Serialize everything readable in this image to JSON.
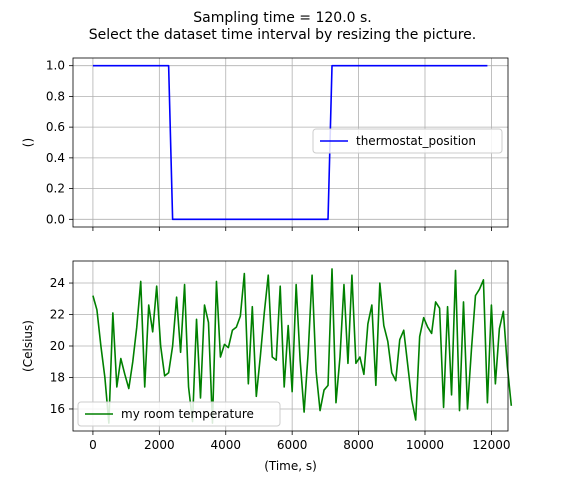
{
  "figure": {
    "title_lines": [
      "Sampling time = 120.0 s.",
      "Select the dataset time interval by resizing the picture."
    ]
  },
  "chart_data": [
    {
      "type": "line",
      "ylabel": "()",
      "xlabel": "",
      "xlim": [
        -600,
        12500
      ],
      "ylim": [
        -0.05,
        1.05
      ],
      "xticks": [
        0,
        2000,
        4000,
        6000,
        8000,
        10000,
        12000
      ],
      "xtick_labels_visible": false,
      "yticks": [
        0.0,
        0.2,
        0.4,
        0.6,
        0.8,
        1.0
      ],
      "ytick_labels": [
        "0.0",
        "0.2",
        "0.4",
        "0.6",
        "0.8",
        "1.0"
      ],
      "grid": true,
      "legend_position": "center-right",
      "series": [
        {
          "name": "thermostat_position",
          "color": "#0000ff",
          "x": [
            0,
            2280,
            2400,
            7080,
            7200,
            11880
          ],
          "y": [
            1,
            1,
            0,
            0,
            1,
            1
          ]
        }
      ]
    },
    {
      "type": "line",
      "ylabel": "(Celsius)",
      "xlabel": "(Time, s)",
      "xlim": [
        -600,
        12500
      ],
      "ylim": [
        14.6,
        25.4
      ],
      "xticks": [
        0,
        2000,
        4000,
        6000,
        8000,
        10000,
        12000
      ],
      "xtick_labels": [
        "0",
        "2000",
        "4000",
        "6000",
        "8000",
        "10000",
        "12000"
      ],
      "yticks": [
        16,
        18,
        20,
        22,
        24
      ],
      "ytick_labels": [
        "16",
        "18",
        "20",
        "22",
        "24"
      ],
      "grid": true,
      "legend_position": "lower-left",
      "series": [
        {
          "name": "my room temperature",
          "color": "#008000",
          "x_start": 0,
          "x_step": 120,
          "y": [
            23.2,
            22.3,
            20.0,
            18.0,
            15.1,
            22.1,
            17.4,
            19.2,
            18.2,
            17.3,
            19.0,
            21.2,
            24.1,
            17.4,
            22.6,
            20.9,
            23.8,
            20.0,
            18.1,
            18.3,
            20.0,
            23.1,
            19.6,
            23.9,
            17.4,
            15.2,
            21.7,
            16.7,
            22.6,
            21.5,
            15.1,
            24.1,
            19.3,
            20.1,
            19.9,
            21.0,
            21.2,
            21.9,
            24.6,
            17.6,
            22.5,
            16.8,
            19.3,
            22.1,
            24.5,
            19.3,
            19.1,
            23.8,
            17.4,
            21.3,
            17.1,
            23.9,
            19.1,
            15.8,
            19.5,
            24.5,
            18.4,
            15.9,
            17.2,
            17.5,
            24.9,
            16.4,
            19.3,
            23.9,
            18.9,
            24.5,
            18.9,
            19.3,
            18.2,
            21.4,
            22.6,
            17.5,
            24.0,
            21.3,
            20.3,
            18.3,
            17.8,
            20.4,
            21.0,
            18.8,
            16.6,
            15.3,
            20.6,
            21.8,
            21.2,
            20.8,
            22.8,
            22.4,
            16.1,
            22.5,
            16.9,
            24.8,
            15.9,
            22.8,
            16.0,
            19.8,
            23.2,
            23.6,
            24.2,
            16.4,
            22.6,
            17.6,
            21.1,
            22.2,
            18.7,
            16.2
          ]
        }
      ]
    }
  ]
}
